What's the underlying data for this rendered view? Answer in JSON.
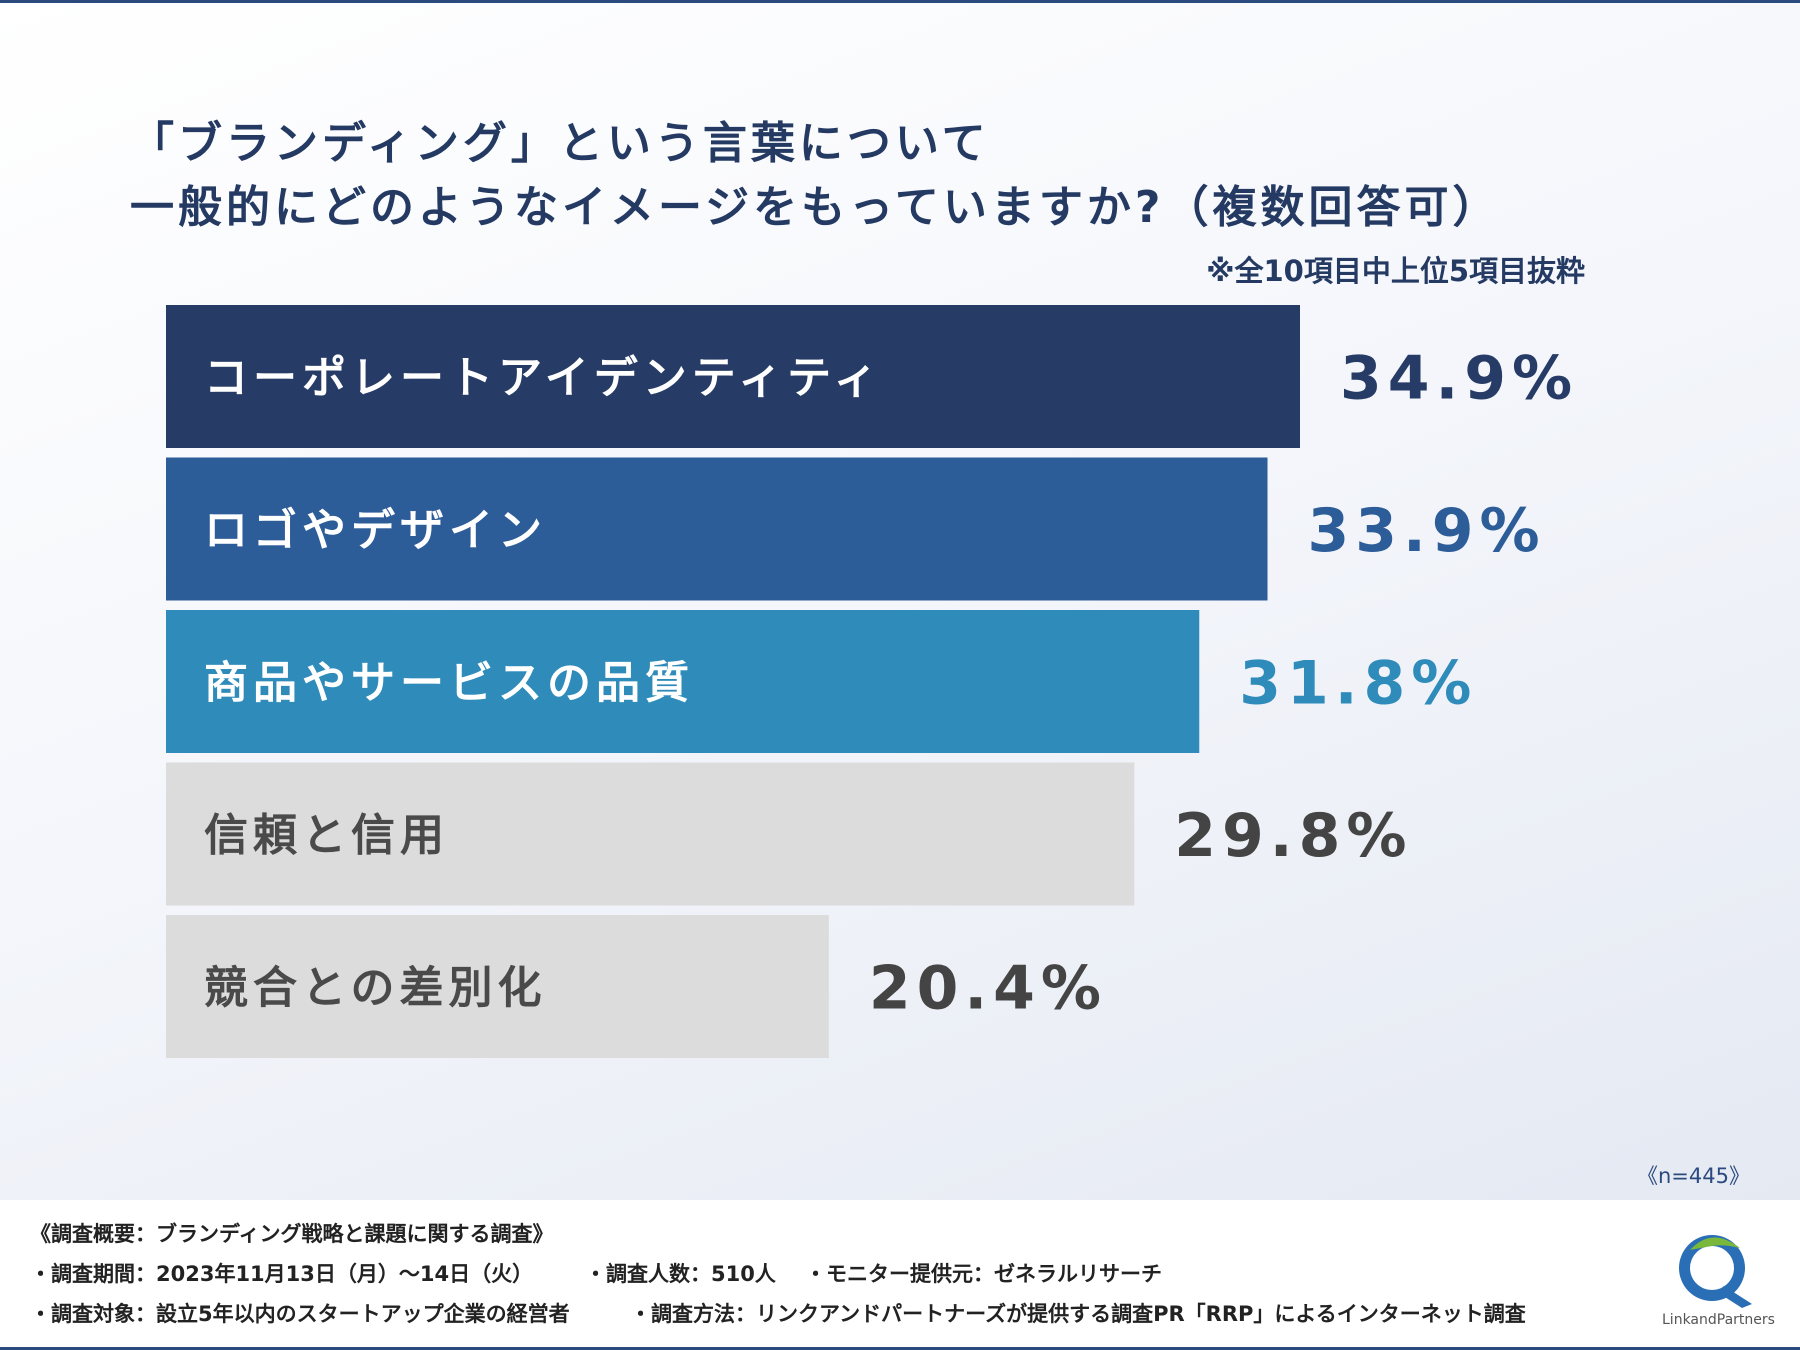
{
  "title": "「ブランディング」という言葉について\n一般的にどのようなイメージをもっていますか?（複数回答可）",
  "note": "※全10項目中上位5項目抜粋",
  "sample_size": "《n=445》",
  "chart_data": {
    "type": "bar",
    "orientation": "horizontal",
    "categories": [
      "コーポレートアイデンティティ",
      "ロゴやデザイン",
      "商品やサービスの品質",
      "信頼と信用",
      "競合との差別化"
    ],
    "values": [
      34.9,
      33.9,
      31.8,
      29.8,
      20.4
    ],
    "value_labels": [
      "34.9%",
      "33.9%",
      "31.8%",
      "29.8%",
      "20.4%"
    ],
    "unit": "%",
    "xlim": [
      0,
      40
    ],
    "grid": false,
    "legend": "none",
    "bar_colors": [
      "#263b65",
      "#2d5d98",
      "#2e8bba",
      "#dcdcdc",
      "#dcdcdc"
    ],
    "value_colors": [
      "#263b65",
      "#2d5d98",
      "#2e8bba",
      "#444444",
      "#444444"
    ],
    "label_colors": [
      "#ffffff",
      "#ffffff",
      "#ffffff",
      "#4a4a4a",
      "#4a4a4a"
    ]
  },
  "footer": {
    "heading": "《調査概要：ブランディング戦略と課題に関する調査》",
    "period": "・調査期間：2023年11月13日（月）〜14日（火）",
    "respondents": "・調査人数：510人",
    "provider": "・モニター提供元：ゼネラルリサーチ",
    "target": "・調査対象：設立5年以内のスタートアップ企業の経営者",
    "method": "・調査方法：リンクアンドパートナーズが提供する調査PR「RRP」によるインターネット調査"
  },
  "logo": {
    "text": "LinkandPartners",
    "colors": [
      "#2a6fb5",
      "#79b83a"
    ]
  }
}
